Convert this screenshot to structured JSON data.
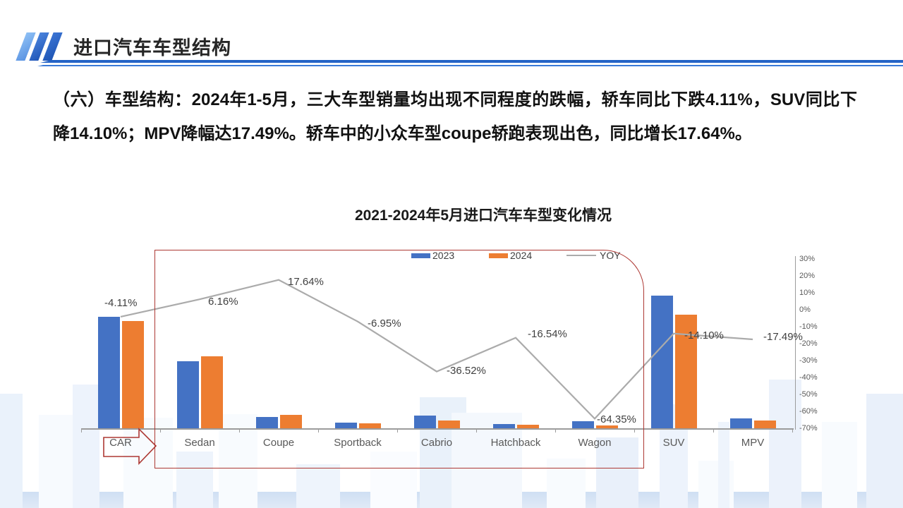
{
  "header": {
    "title": "进口汽车车型结构"
  },
  "body_paragraph": "（六）车型结构：2024年1-5月，三大车型销量均出现不同程度的跌幅，轿车同比下跌4.11%，SUV同比下降14.10%；MPV降幅达17.49%。轿车中的小众车型coupe轿跑表现出色，同比增长17.64%。",
  "chart_data": {
    "type": "bar",
    "subtype": "grouped bars with overlaid line (dual axis, left value axis hidden)",
    "title": "2021-2024年5月进口汽车车型变化情况",
    "categories": [
      "CAR",
      "Sedan",
      "Coupe",
      "Sportback",
      "Cabrio",
      "Hatchback",
      "Wagon",
      "SUV",
      "MPV"
    ],
    "series": [
      {
        "name": "2023",
        "type": "bar",
        "color": "#4472C4",
        "values": [
          158,
          95,
          16,
          8,
          18,
          6,
          10,
          188,
          14
        ],
        "note": "left value axis not shown; values are estimated relative heights"
      },
      {
        "name": "2024",
        "type": "bar",
        "color": "#ED7D31",
        "values": [
          152,
          102,
          19,
          7,
          11,
          5,
          4,
          161,
          11
        ]
      },
      {
        "name": "YOY",
        "type": "line",
        "color": "#ababab",
        "values": [
          -4.11,
          6.16,
          17.64,
          -6.95,
          -36.52,
          -16.54,
          -64.35,
          -14.1,
          -17.49
        ],
        "labels": [
          "-4.11%",
          "6.16%",
          "17.64%",
          "-6.95%",
          "-36.52%",
          "-16.54%",
          "-64.35%",
          "-14.10%",
          "-17.49%"
        ]
      }
    ],
    "legend": {
      "position": "top",
      "entries": [
        "2023",
        "2024",
        "YOY"
      ]
    },
    "right_axis": {
      "min": -70,
      "max": 30,
      "step": 10,
      "ticks": [
        "30%",
        "20%",
        "10%",
        "0%",
        "-10%",
        "-20%",
        "-30%",
        "-40%",
        "-50%",
        "-60%",
        "-70%"
      ]
    },
    "grid": "off",
    "annotations": {
      "highlight_box_over": "Sedan through Wagon (coupe breakdown of CAR)",
      "arrow_label": "CAR"
    }
  },
  "colors": {
    "bar_2023": "#4472C4",
    "bar_2024": "#ED7D31",
    "yoy_line": "#ababab",
    "highlight_red": "#ad3833",
    "header_blue": "#2463c6",
    "axis_gray": "#9b9b9b"
  }
}
